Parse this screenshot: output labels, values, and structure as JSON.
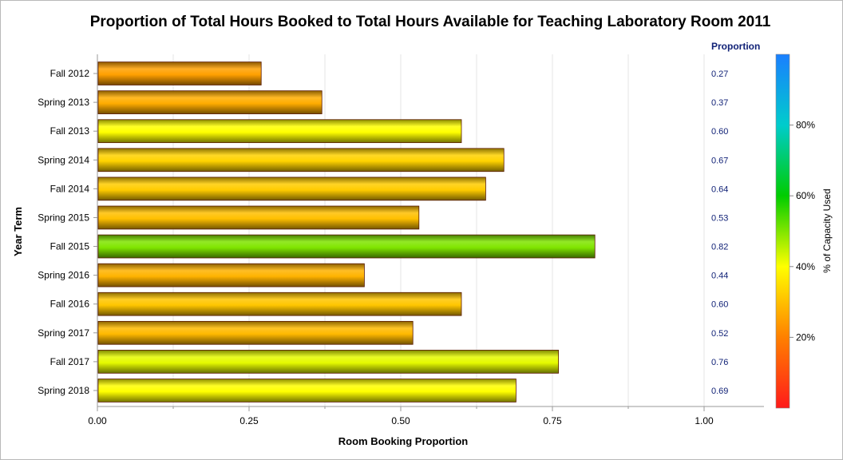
{
  "chart_data": {
    "type": "bar",
    "orientation": "horizontal",
    "title": "Proportion of Total Hours Booked to Total Hours Available for Teaching Laboratory Room 2011",
    "xlabel": "Room Booking Proportion",
    "ylabel": "Year Term",
    "xlim": [
      0,
      1.1
    ],
    "xticks": [
      0,
      0.25,
      0.5,
      0.75,
      1.0
    ],
    "xtick_labels": [
      "0.00",
      "0.25",
      "0.50",
      "0.75",
      "1.00"
    ],
    "grid": true,
    "categories": [
      "Fall 2012",
      "Spring 2013",
      "Fall 2013",
      "Spring 2014",
      "Fall 2014",
      "Spring 2015",
      "Fall 2015",
      "Spring 2016",
      "Fall 2016",
      "Spring 2017",
      "Fall 2017",
      "Spring 2018"
    ],
    "values": [
      0.27,
      0.37,
      0.6,
      0.67,
      0.64,
      0.53,
      0.82,
      0.44,
      0.6,
      0.52,
      0.76,
      0.69
    ],
    "value_labels": [
      "0.27",
      "0.37",
      "0.60",
      "0.67",
      "0.64",
      "0.53",
      "0.82",
      "0.44",
      "0.60",
      "0.52",
      "0.76",
      "0.69"
    ],
    "capacity_used_pct": [
      25,
      27,
      40,
      33,
      32,
      30,
      50,
      28,
      31,
      29,
      42,
      40
    ],
    "value_column_header": "Proportion",
    "colorbar": {
      "label": "% of Capacity Used",
      "range": [
        0,
        100
      ],
      "ticks": [
        20,
        40,
        60,
        80
      ],
      "tick_labels": [
        "20%",
        "40%",
        "60%",
        "80%"
      ],
      "colors": [
        "#ff1a1a",
        "#ff8000",
        "#ffff00",
        "#00cc00",
        "#00cccc",
        "#1a7fff"
      ]
    }
  }
}
